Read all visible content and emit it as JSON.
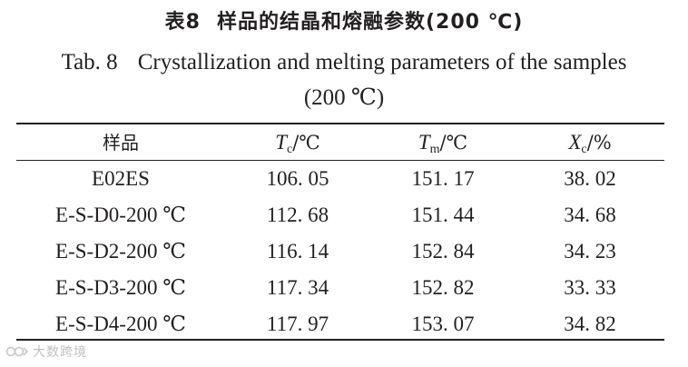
{
  "title": {
    "cn_label": "表8",
    "cn_text": "样品的结晶和熔融参数(200 ℃)",
    "en_label": "Tab. 8",
    "en_text": "Crystallization and melting parameters of the samples",
    "en_condition": "(200 ℃)"
  },
  "table": {
    "headers": {
      "sample": "样品",
      "tc_symbol": "T",
      "tc_sub": "c",
      "tc_unit": "/℃",
      "tm_symbol": "T",
      "tm_sub": "m",
      "tm_unit": "/℃",
      "xc_symbol": "X",
      "xc_sub": "c",
      "xc_unit": "/%"
    },
    "rows": [
      {
        "sample": "E02ES",
        "tc": "106. 05",
        "tm": "151. 17",
        "xc": "38. 02"
      },
      {
        "sample": "E-S-D0-200 ℃",
        "tc": "112. 68",
        "tm": "151. 44",
        "xc": "34. 68"
      },
      {
        "sample": "E-S-D2-200 ℃",
        "tc": "116. 14",
        "tm": "152. 84",
        "xc": "34. 23"
      },
      {
        "sample": "E-S-D3-200 ℃",
        "tc": "117. 34",
        "tm": "152. 82",
        "xc": "33. 33"
      },
      {
        "sample": "E-S-D4-200 ℃",
        "tc": "117. 97",
        "tm": "153. 07",
        "xc": "34. 82"
      }
    ]
  },
  "watermark": {
    "text": "大数跨境"
  }
}
